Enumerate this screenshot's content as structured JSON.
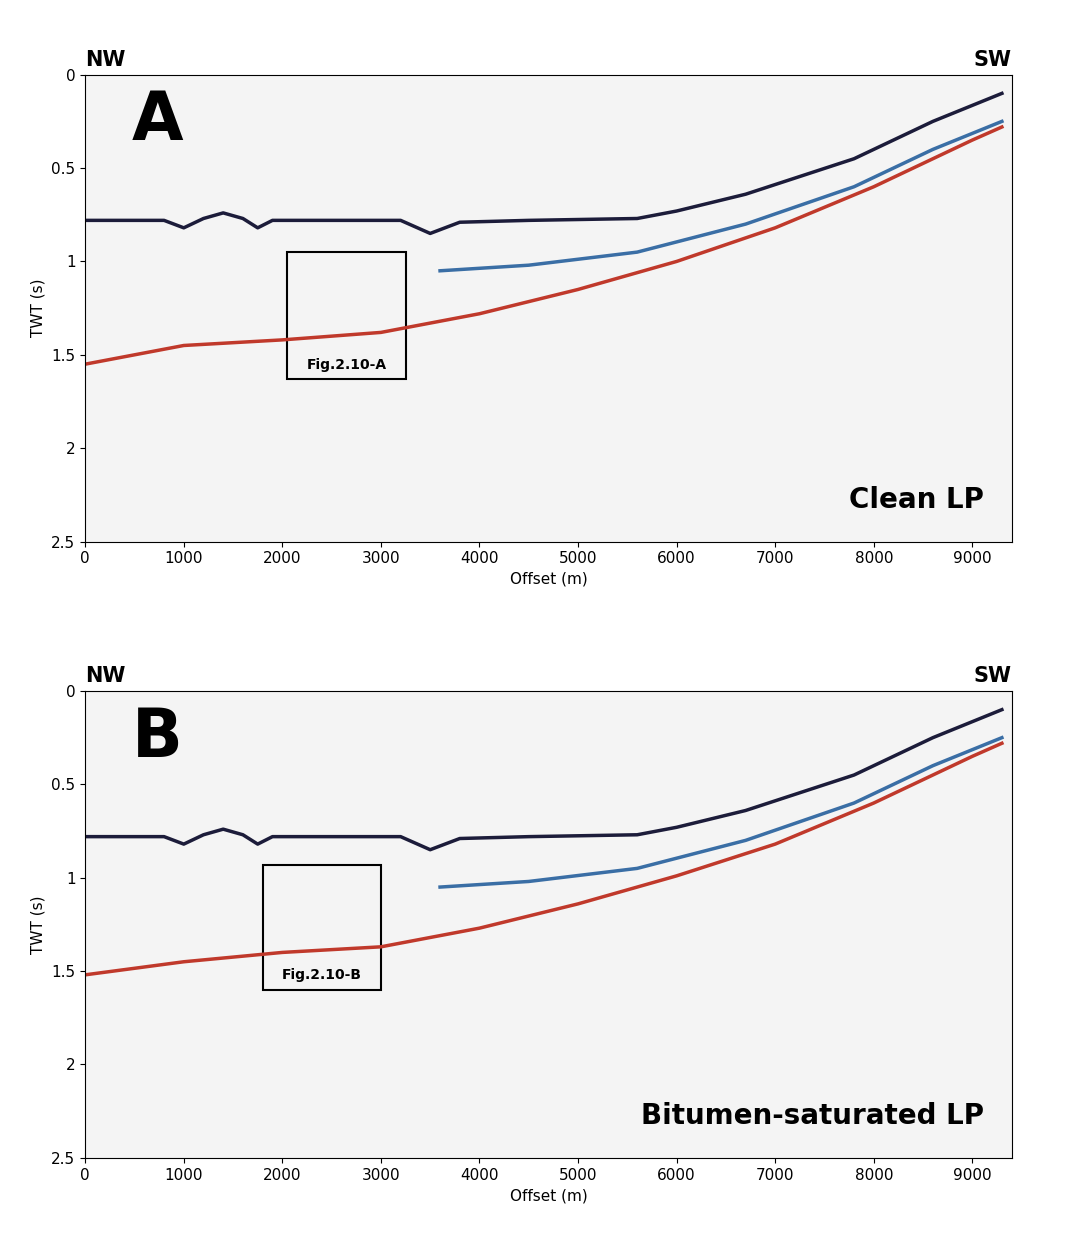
{
  "chart_data": [
    {
      "type": "line",
      "panel_label": "A",
      "left_label": "NW",
      "right_label": "SW",
      "caption": "Clean LP",
      "x_label": "Offset (m)",
      "y_label": "TWT (s)",
      "xlim": [
        0,
        9400
      ],
      "ylim": [
        2.5,
        0
      ],
      "xticks": [
        0,
        1000,
        2000,
        3000,
        4000,
        5000,
        6000,
        7000,
        8000,
        9000
      ],
      "yticks": [
        0,
        0.5,
        1,
        1.5,
        2,
        2.5
      ],
      "box": {
        "label": "Fig.2.10-A",
        "x": [
          2050,
          3250
        ],
        "y": [
          0.95,
          1.63
        ]
      },
      "series": [
        {
          "color": "#1c1c3a",
          "x": [
            0,
            800,
            1000,
            1200,
            1400,
            1600,
            1750,
            1900,
            2500,
            3200,
            3500,
            3800,
            4500,
            5600,
            6000,
            6700,
            7800,
            8600,
            9300
          ],
          "values": [
            0.78,
            0.78,
            0.82,
            0.77,
            0.74,
            0.77,
            0.82,
            0.78,
            0.78,
            0.78,
            0.85,
            0.79,
            0.78,
            0.77,
            0.73,
            0.64,
            0.45,
            0.25,
            0.1
          ]
        },
        {
          "color": "#3a6ea5",
          "x": [
            3600,
            4500,
            5600,
            6700,
            7800,
            8600,
            9300
          ],
          "values": [
            1.05,
            1.02,
            0.95,
            0.8,
            0.6,
            0.4,
            0.25
          ]
        },
        {
          "color": "#c0392b",
          "x": [
            0,
            1000,
            2000,
            3000,
            4000,
            5000,
            6000,
            7000,
            8000,
            9000,
            9300
          ],
          "values": [
            1.55,
            1.45,
            1.42,
            1.38,
            1.28,
            1.15,
            1.0,
            0.82,
            0.6,
            0.35,
            0.28
          ]
        }
      ]
    },
    {
      "type": "line",
      "panel_label": "B",
      "left_label": "NW",
      "right_label": "SW",
      "caption": "Bitumen-saturated LP",
      "x_label": "Offset (m)",
      "y_label": "TWT (s)",
      "xlim": [
        0,
        9400
      ],
      "ylim": [
        2.5,
        0
      ],
      "xticks": [
        0,
        1000,
        2000,
        3000,
        4000,
        5000,
        6000,
        7000,
        8000,
        9000
      ],
      "yticks": [
        0,
        0.5,
        1,
        1.5,
        2,
        2.5
      ],
      "box": {
        "label": "Fig.2.10-B",
        "x": [
          1800,
          3000
        ],
        "y": [
          0.93,
          1.6
        ]
      },
      "series": [
        {
          "color": "#1c1c3a",
          "x": [
            0,
            800,
            1000,
            1200,
            1400,
            1600,
            1750,
            1900,
            2500,
            3200,
            3500,
            3800,
            4500,
            5600,
            6000,
            6700,
            7800,
            8600,
            9300
          ],
          "values": [
            0.78,
            0.78,
            0.82,
            0.77,
            0.74,
            0.77,
            0.82,
            0.78,
            0.78,
            0.78,
            0.85,
            0.79,
            0.78,
            0.77,
            0.73,
            0.64,
            0.45,
            0.25,
            0.1
          ]
        },
        {
          "color": "#3a6ea5",
          "x": [
            3600,
            4500,
            5600,
            6700,
            7800,
            8600,
            9300
          ],
          "values": [
            1.05,
            1.02,
            0.95,
            0.8,
            0.6,
            0.4,
            0.25
          ]
        },
        {
          "color": "#c0392b",
          "x": [
            0,
            1000,
            2000,
            3000,
            4000,
            5000,
            6000,
            7000,
            8000,
            9000,
            9300
          ],
          "values": [
            1.52,
            1.45,
            1.4,
            1.37,
            1.27,
            1.14,
            0.99,
            0.82,
            0.6,
            0.35,
            0.28
          ]
        }
      ]
    }
  ]
}
